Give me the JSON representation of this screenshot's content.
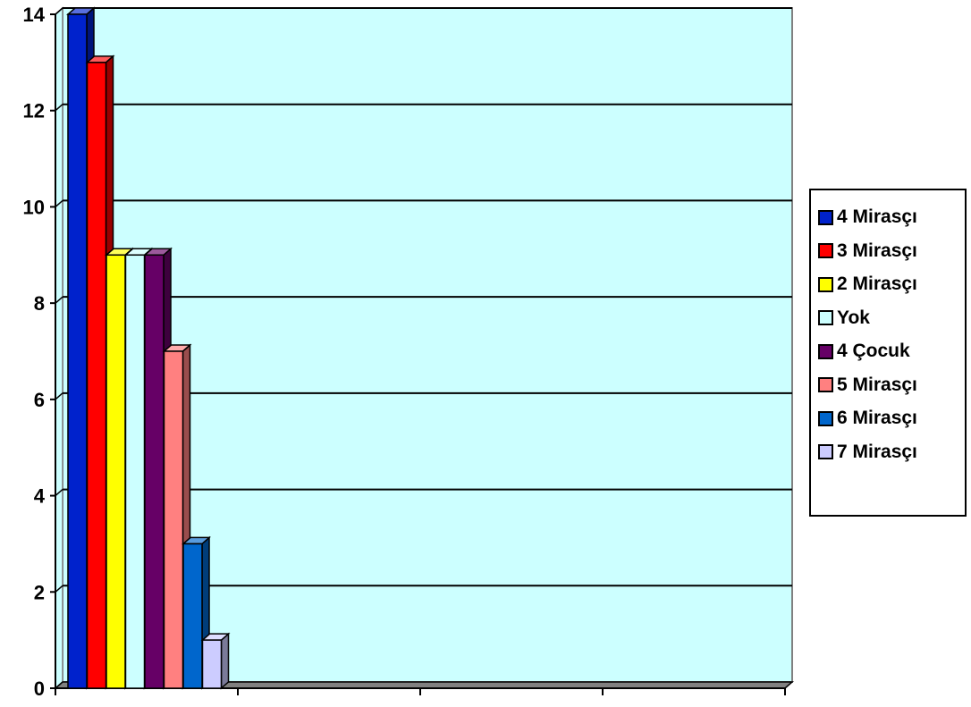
{
  "chart_data": {
    "type": "bar",
    "style": "3d-clustered",
    "categories": [
      ""
    ],
    "series": [
      {
        "name": "4 Mirasçı",
        "values": [
          14
        ],
        "color": "#0022cc"
      },
      {
        "name": "3 Mirasçı",
        "values": [
          13
        ],
        "color": "#ff0000"
      },
      {
        "name": "2 Mirasçı",
        "values": [
          9
        ],
        "color": "#ffff00"
      },
      {
        "name": "Yok",
        "values": [
          9
        ],
        "color": "#ccffff"
      },
      {
        "name": "4 Çocuk",
        "values": [
          9
        ],
        "color": "#660066"
      },
      {
        "name": "5 Mirasçı",
        "values": [
          7
        ],
        "color": "#ff8080"
      },
      {
        "name": "6 Mirasçı",
        "values": [
          3
        ],
        "color": "#0066cc"
      },
      {
        "name": "7 Mirasçı",
        "values": [
          1
        ],
        "color": "#ccccff"
      }
    ],
    "yticks": [
      "0",
      "2",
      "4",
      "6",
      "8",
      "10",
      "12",
      "14"
    ],
    "ylim": [
      0,
      14
    ],
    "grid": true,
    "legend_position": "right",
    "plot_background": "#ccffff",
    "title": "",
    "xlabel": "",
    "ylabel": ""
  }
}
